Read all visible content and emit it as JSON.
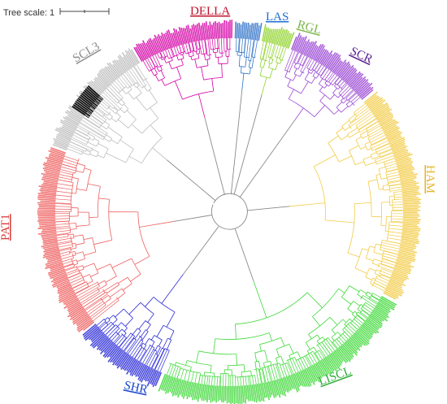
{
  "tree_scale": {
    "label": "Tree scale: 1"
  },
  "clades": [
    {
      "id": "della",
      "label": "DELLA",
      "color": "#c0122a",
      "fill": "#d400a6"
    },
    {
      "id": "las",
      "label": "LAS",
      "color": "#1b6fd0",
      "fill": "#2f72c8"
    },
    {
      "id": "rgl",
      "label": "RGL",
      "color": "#7ab648",
      "fill": "#8fd22a"
    },
    {
      "id": "scr",
      "label": "SCR",
      "color": "#5a1f8f",
      "fill": "#9a47d3"
    },
    {
      "id": "ham",
      "label": "HAM",
      "color": "#e6b626",
      "fill": "#f2cb46"
    },
    {
      "id": "liscl",
      "label": "LISCL",
      "color": "#2fae3a",
      "fill": "#3fd93a"
    },
    {
      "id": "shr",
      "label": "SHR",
      "color": "#1a46c8",
      "fill": "#2b2bd8"
    },
    {
      "id": "pat1",
      "label": "PAT1",
      "color": "#d63a3a",
      "fill": "#ee5f5f"
    },
    {
      "id": "scl3",
      "label": "SCL3",
      "color": "#8c8c8c",
      "fill": "#bdbdbd"
    }
  ],
  "outgroup": {
    "color": "#111111"
  }
}
